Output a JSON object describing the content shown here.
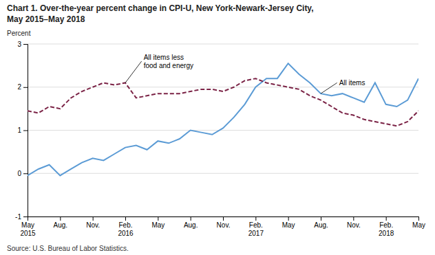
{
  "chart_data": {
    "type": "line",
    "title": "Chart 1. Over-the-year percent change in CPI-U, New York-Newark-Jersey City,\nMay 2015–May 2018",
    "y_label": "Percent",
    "source": "Source: U.S. Bureau of Labor Statistics.",
    "categories": [
      "May\n2015",
      null,
      null,
      "Aug.",
      null,
      null,
      "Nov.",
      null,
      null,
      "Feb.\n2016",
      null,
      null,
      "May",
      null,
      null,
      "Aug.",
      null,
      null,
      "Nov.",
      null,
      null,
      "Feb.\n2017",
      null,
      null,
      "May",
      null,
      null,
      "Aug.",
      null,
      null,
      "Nov.",
      null,
      null,
      "Feb.\n2018",
      null,
      null,
      "May"
    ],
    "series": [
      {
        "color": "#5b9bd5",
        "line_style": "solid",
        "values": [
          -0.05,
          0.1,
          0.2,
          -0.05,
          0.1,
          0.25,
          0.35,
          0.3,
          0.45,
          0.6,
          0.65,
          0.55,
          0.75,
          0.7,
          0.8,
          1.0,
          0.95,
          0.9,
          1.05,
          1.3,
          1.6,
          2.0,
          2.2,
          2.2,
          2.55,
          2.3,
          2.1,
          1.85,
          1.8,
          1.85,
          1.75,
          1.65,
          2.1,
          1.6,
          1.55,
          1.7,
          2.2
        ]
      },
      {
        "color": "#7b2346",
        "line_style": "dashed",
        "values": [
          1.45,
          1.4,
          1.55,
          1.5,
          1.75,
          1.9,
          2.0,
          2.1,
          2.05,
          2.1,
          1.75,
          1.8,
          1.85,
          1.85,
          1.85,
          1.9,
          1.95,
          1.95,
          1.9,
          2.0,
          2.15,
          2.2,
          2.1,
          2.05,
          2.0,
          1.95,
          1.8,
          1.7,
          1.55,
          1.4,
          1.35,
          1.25,
          1.2,
          1.15,
          1.1,
          1.2,
          1.45
        ]
      }
    ],
    "annotations": [
      {
        "text": "All items less\nfood and energy",
        "x": 9,
        "y": 2.1,
        "text_x": 10.5,
        "text_y": 2.6
      },
      {
        "text": "All items",
        "x": 27,
        "y": 1.85,
        "text_x": 28.5,
        "text_y": 2.1
      }
    ],
    "ylim": [
      -1,
      3
    ],
    "yticks": [
      -1,
      0,
      1,
      2,
      3
    ],
    "grid": true
  }
}
